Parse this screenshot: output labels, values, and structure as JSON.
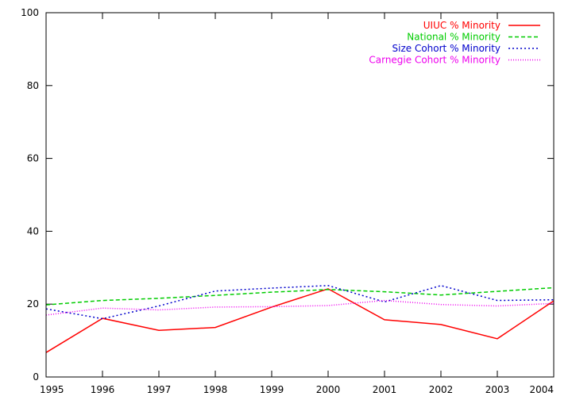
{
  "chart_data": {
    "type": "line",
    "x": [
      1995,
      1996,
      1997,
      1998,
      1999,
      2000,
      2001,
      2002,
      2003,
      2004
    ],
    "xticks": [
      "1995",
      "1996",
      "1997",
      "1998",
      "1999",
      "2000",
      "2001",
      "2002",
      "2003",
      "2004"
    ],
    "yticks": [
      "0",
      "20",
      "40",
      "60",
      "80",
      "100"
    ],
    "xlim": [
      1995,
      2004
    ],
    "ylim": [
      0,
      100
    ],
    "grid": false,
    "legend_position": "top-right",
    "series": [
      {
        "name": "UIUC % Minority",
        "color": "#ff0000",
        "dash": "solid",
        "values": [
          6.7,
          16.1,
          12.8,
          13.6,
          19.2,
          24.2,
          15.7,
          14.4,
          10.5,
          20.9
        ]
      },
      {
        "name": "National % Minority",
        "color": "#00cc00",
        "dash": "dashed",
        "values": [
          19.8,
          21.0,
          21.6,
          22.4,
          23.3,
          24.0,
          23.4,
          22.5,
          23.5,
          24.5
        ]
      },
      {
        "name": "Size Cohort % Minority",
        "color": "#0000cc",
        "dash": "dotted",
        "values": [
          18.7,
          16.0,
          19.5,
          23.6,
          24.4,
          25.1,
          20.6,
          25.1,
          21.0,
          21.2
        ]
      },
      {
        "name": "Carnegie Cohort % Minority",
        "color": "#ee00ee",
        "dash": "fine-dotted",
        "values": [
          17.0,
          18.9,
          18.4,
          19.2,
          19.3,
          19.6,
          21.0,
          19.9,
          19.5,
          20.2
        ]
      }
    ]
  }
}
